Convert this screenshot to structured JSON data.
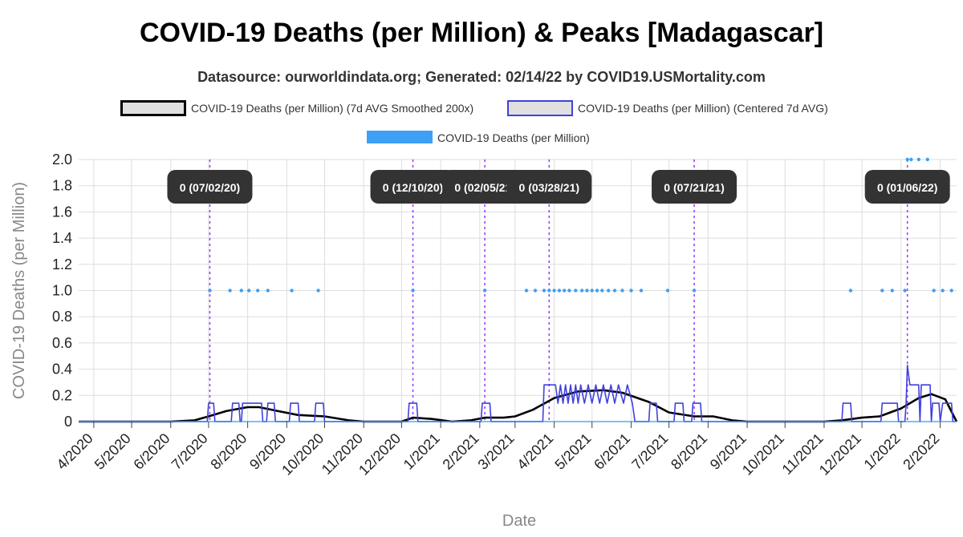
{
  "chart_data": {
    "type": "line",
    "title": "COVID-19 Deaths (per Million) & Peaks [Madagascar]",
    "subtitle": "Datasource: ourworldindata.org; Generated: 02/14/22 by COVID19.USMortality.com",
    "xlabel": "Date",
    "ylabel": "COVID-19 Deaths (per Million)",
    "ylim": [
      0,
      2
    ],
    "yticks": [
      "0",
      "0.2",
      "0.4",
      "0.6",
      "0.8",
      "1.0",
      "1.2",
      "1.4",
      "1.6",
      "1.8",
      "2.0"
    ],
    "xlim": [
      "2020-03-20",
      "2022-02-14"
    ],
    "xticks": [
      {
        "date": "2020-04-01",
        "label": "4/2020"
      },
      {
        "date": "2020-05-01",
        "label": "5/2020"
      },
      {
        "date": "2020-06-01",
        "label": "6/2020"
      },
      {
        "date": "2020-07-01",
        "label": "7/2020"
      },
      {
        "date": "2020-08-01",
        "label": "8/2020"
      },
      {
        "date": "2020-09-01",
        "label": "9/2020"
      },
      {
        "date": "2020-10-01",
        "label": "10/2020"
      },
      {
        "date": "2020-11-01",
        "label": "11/2020"
      },
      {
        "date": "2020-12-01",
        "label": "12/2020"
      },
      {
        "date": "2021-01-01",
        "label": "1/2021"
      },
      {
        "date": "2021-02-01",
        "label": "2/2021"
      },
      {
        "date": "2021-03-01",
        "label": "3/2021"
      },
      {
        "date": "2021-04-01",
        "label": "4/2021"
      },
      {
        "date": "2021-05-01",
        "label": "5/2021"
      },
      {
        "date": "2021-06-01",
        "label": "6/2021"
      },
      {
        "date": "2021-07-01",
        "label": "7/2021"
      },
      {
        "date": "2021-08-01",
        "label": "8/2021"
      },
      {
        "date": "2021-09-01",
        "label": "9/2021"
      },
      {
        "date": "2021-10-01",
        "label": "10/2021"
      },
      {
        "date": "2021-11-01",
        "label": "11/2021"
      },
      {
        "date": "2021-12-01",
        "label": "12/2021"
      },
      {
        "date": "2022-01-01",
        "label": "1/2022"
      },
      {
        "date": "2022-02-01",
        "label": "2/2022"
      }
    ],
    "grid": true,
    "legend_position": "top",
    "series": [
      {
        "name": "COVID-19 Deaths (per Million) (7d AVG Smoothed 200x)",
        "style": "line",
        "color": "#000000",
        "points": [
          [
            "2020-03-20",
            0
          ],
          [
            "2020-06-01",
            0
          ],
          [
            "2020-06-20",
            0.01
          ],
          [
            "2020-07-01",
            0.04
          ],
          [
            "2020-07-15",
            0.08
          ],
          [
            "2020-08-01",
            0.11
          ],
          [
            "2020-08-10",
            0.11
          ],
          [
            "2020-08-25",
            0.08
          ],
          [
            "2020-09-10",
            0.05
          ],
          [
            "2020-10-01",
            0.04
          ],
          [
            "2020-10-20",
            0.01
          ],
          [
            "2020-11-01",
            0
          ],
          [
            "2020-12-01",
            0
          ],
          [
            "2020-12-10",
            0.03
          ],
          [
            "2020-12-25",
            0.02
          ],
          [
            "2021-01-10",
            0
          ],
          [
            "2021-01-25",
            0.01
          ],
          [
            "2021-02-05",
            0.03
          ],
          [
            "2021-02-20",
            0.03
          ],
          [
            "2021-03-01",
            0.04
          ],
          [
            "2021-03-15",
            0.09
          ],
          [
            "2021-04-01",
            0.18
          ],
          [
            "2021-04-20",
            0.23
          ],
          [
            "2021-05-10",
            0.24
          ],
          [
            "2021-05-25",
            0.22
          ],
          [
            "2021-06-15",
            0.15
          ],
          [
            "2021-07-01",
            0.07
          ],
          [
            "2021-07-21",
            0.04
          ],
          [
            "2021-08-05",
            0.04
          ],
          [
            "2021-08-20",
            0.01
          ],
          [
            "2021-09-01",
            0
          ],
          [
            "2021-11-01",
            0
          ],
          [
            "2021-11-15",
            0.01
          ],
          [
            "2021-12-01",
            0.03
          ],
          [
            "2021-12-15",
            0.04
          ],
          [
            "2022-01-01",
            0.1
          ],
          [
            "2022-01-15",
            0.18
          ],
          [
            "2022-01-25",
            0.21
          ],
          [
            "2022-02-05",
            0.17
          ],
          [
            "2022-02-14",
            0
          ]
        ]
      },
      {
        "name": "COVID-19 Deaths (per Million) (Centered 7d AVG)",
        "style": "line",
        "color": "#4040e0",
        "points": [
          [
            "2020-03-20",
            0
          ],
          [
            "2020-06-30",
            0
          ],
          [
            "2020-07-01",
            0.14
          ],
          [
            "2020-07-05",
            0.14
          ],
          [
            "2020-07-06",
            0
          ],
          [
            "2020-07-19",
            0
          ],
          [
            "2020-07-20",
            0.14
          ],
          [
            "2020-07-25",
            0.14
          ],
          [
            "2020-07-26",
            0
          ],
          [
            "2020-07-27",
            0
          ],
          [
            "2020-07-28",
            0.14
          ],
          [
            "2020-08-12",
            0.14
          ],
          [
            "2020-08-13",
            0
          ],
          [
            "2020-08-16",
            0
          ],
          [
            "2020-08-17",
            0.14
          ],
          [
            "2020-08-22",
            0.14
          ],
          [
            "2020-08-23",
            0
          ],
          [
            "2020-09-03",
            0
          ],
          [
            "2020-09-04",
            0.14
          ],
          [
            "2020-09-10",
            0.14
          ],
          [
            "2020-09-11",
            0
          ],
          [
            "2020-09-23",
            0
          ],
          [
            "2020-09-24",
            0.14
          ],
          [
            "2020-09-30",
            0.14
          ],
          [
            "2020-10-01",
            0
          ],
          [
            "2020-12-06",
            0
          ],
          [
            "2020-12-07",
            0.14
          ],
          [
            "2020-12-13",
            0.14
          ],
          [
            "2020-12-14",
            0
          ],
          [
            "2021-02-02",
            0
          ],
          [
            "2021-02-03",
            0.14
          ],
          [
            "2021-02-09",
            0.14
          ],
          [
            "2021-02-10",
            0
          ],
          [
            "2021-03-23",
            0
          ],
          [
            "2021-03-24",
            0.28
          ],
          [
            "2021-04-02",
            0.28
          ],
          [
            "2021-04-04",
            0.14
          ],
          [
            "2021-04-06",
            0.28
          ],
          [
            "2021-04-08",
            0.14
          ],
          [
            "2021-04-10",
            0.28
          ],
          [
            "2021-04-12",
            0.14
          ],
          [
            "2021-04-14",
            0.28
          ],
          [
            "2021-04-16",
            0.14
          ],
          [
            "2021-04-18",
            0.28
          ],
          [
            "2021-04-20",
            0.14
          ],
          [
            "2021-04-22",
            0.28
          ],
          [
            "2021-04-25",
            0.14
          ],
          [
            "2021-04-28",
            0.28
          ],
          [
            "2021-05-01",
            0.14
          ],
          [
            "2021-05-04",
            0.28
          ],
          [
            "2021-05-07",
            0.14
          ],
          [
            "2021-05-10",
            0.28
          ],
          [
            "2021-05-13",
            0.14
          ],
          [
            "2021-05-16",
            0.28
          ],
          [
            "2021-05-19",
            0.14
          ],
          [
            "2021-05-22",
            0.28
          ],
          [
            "2021-05-26",
            0.14
          ],
          [
            "2021-05-29",
            0.28
          ],
          [
            "2021-06-02",
            0.14
          ],
          [
            "2021-06-04",
            0
          ],
          [
            "2021-06-15",
            0
          ],
          [
            "2021-06-16",
            0.14
          ],
          [
            "2021-06-21",
            0.14
          ],
          [
            "2021-06-22",
            0
          ],
          [
            "2021-07-05",
            0
          ],
          [
            "2021-07-06",
            0.14
          ],
          [
            "2021-07-12",
            0.14
          ],
          [
            "2021-07-13",
            0
          ],
          [
            "2021-07-19",
            0
          ],
          [
            "2021-07-20",
            0.14
          ],
          [
            "2021-07-26",
            0.14
          ],
          [
            "2021-07-27",
            0
          ],
          [
            "2021-11-15",
            0
          ],
          [
            "2021-11-16",
            0.14
          ],
          [
            "2021-11-22",
            0.14
          ],
          [
            "2021-11-23",
            0
          ],
          [
            "2021-12-16",
            0
          ],
          [
            "2021-12-17",
            0.14
          ],
          [
            "2021-12-22",
            0.14
          ],
          [
            "2021-12-23",
            0.14
          ],
          [
            "2021-12-29",
            0.14
          ],
          [
            "2021-12-30",
            0
          ],
          [
            "2022-01-04",
            0
          ],
          [
            "2022-01-05",
            0.14
          ],
          [
            "2022-01-06",
            0.43
          ],
          [
            "2022-01-08",
            0.28
          ],
          [
            "2022-01-15",
            0.28
          ],
          [
            "2022-01-16",
            0
          ],
          [
            "2022-01-17",
            0.28
          ],
          [
            "2022-01-24",
            0.28
          ],
          [
            "2022-01-25",
            0
          ],
          [
            "2022-01-26",
            0.14
          ],
          [
            "2022-01-31",
            0.14
          ],
          [
            "2022-02-01",
            0
          ],
          [
            "2022-02-03",
            0.14
          ],
          [
            "2022-02-10",
            0.14
          ],
          [
            "2022-02-11",
            0
          ],
          [
            "2022-02-14",
            0
          ]
        ]
      },
      {
        "name": "COVID-19 Deaths (per Million)",
        "style": "points",
        "color": "#3ea0f5",
        "points": [
          [
            "2020-07-02",
            1
          ],
          [
            "2020-07-18",
            1
          ],
          [
            "2020-07-27",
            1
          ],
          [
            "2020-08-02",
            1
          ],
          [
            "2020-08-09",
            1
          ],
          [
            "2020-08-17",
            1
          ],
          [
            "2020-09-05",
            1
          ],
          [
            "2020-09-26",
            1
          ],
          [
            "2020-12-10",
            1
          ],
          [
            "2021-02-05",
            1
          ],
          [
            "2021-03-10",
            1
          ],
          [
            "2021-03-17",
            1
          ],
          [
            "2021-03-24",
            1
          ],
          [
            "2021-03-28",
            1
          ],
          [
            "2021-04-01",
            1
          ],
          [
            "2021-04-05",
            1
          ],
          [
            "2021-04-09",
            1
          ],
          [
            "2021-04-13",
            1
          ],
          [
            "2021-04-18",
            1
          ],
          [
            "2021-04-23",
            1
          ],
          [
            "2021-04-27",
            1
          ],
          [
            "2021-05-01",
            1
          ],
          [
            "2021-05-05",
            1
          ],
          [
            "2021-05-09",
            1
          ],
          [
            "2021-05-14",
            1
          ],
          [
            "2021-05-19",
            1
          ],
          [
            "2021-05-25",
            1
          ],
          [
            "2021-06-01",
            1
          ],
          [
            "2021-06-09",
            1
          ],
          [
            "2021-06-30",
            1
          ],
          [
            "2021-07-21",
            1
          ],
          [
            "2021-11-22",
            1
          ],
          [
            "2021-12-17",
            1
          ],
          [
            "2021-12-25",
            1
          ],
          [
            "2022-01-04",
            1
          ],
          [
            "2022-01-06",
            2
          ],
          [
            "2022-01-09",
            2
          ],
          [
            "2022-01-15",
            2
          ],
          [
            "2022-01-22",
            2
          ],
          [
            "2022-01-27",
            1
          ],
          [
            "2022-02-03",
            1
          ],
          [
            "2022-02-10",
            1
          ]
        ]
      }
    ],
    "peaks": [
      {
        "date": "2020-07-02",
        "label": "0 (07/02/20)"
      },
      {
        "date": "2020-12-10",
        "label": "0 (12/10/20)"
      },
      {
        "date": "2021-02-05",
        "label": "0 (02/05/21)"
      },
      {
        "date": "2021-03-28",
        "label": "0 (03/28/21)"
      },
      {
        "date": "2021-07-21",
        "label": "0 (07/21/21)"
      },
      {
        "date": "2022-01-06",
        "label": "0 (01/06/22)"
      }
    ],
    "colors": {
      "grid": "#dddddd",
      "peak_line": "#9933ff",
      "peak_box": "#333333",
      "peak_text": "#ffffff",
      "legend_swatch_fill": "#e0e0e0"
    }
  }
}
